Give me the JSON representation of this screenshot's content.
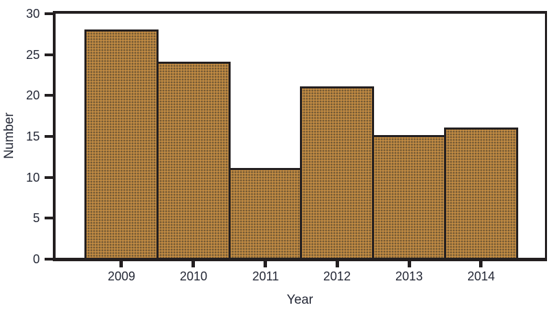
{
  "chart_data": {
    "type": "bar",
    "title": "",
    "categories": [
      "2009",
      "2010",
      "2011",
      "2012",
      "2013",
      "2014"
    ],
    "values": [
      28,
      24,
      11,
      21,
      15,
      16
    ],
    "xlabel": "Year",
    "ylabel": "Number",
    "ylim": [
      0,
      30
    ],
    "yticks": [
      0,
      5,
      10,
      15,
      20,
      25,
      30
    ],
    "grid": false,
    "legend": "none",
    "bars_adjacent": true,
    "colors": {
      "bar_fill": "#a87e46",
      "bar_dot_light": "#c48b40",
      "bar_dot_dark": "#755931",
      "stroke": "#231f20",
      "text": "#242836",
      "background": "#ffffff"
    }
  }
}
